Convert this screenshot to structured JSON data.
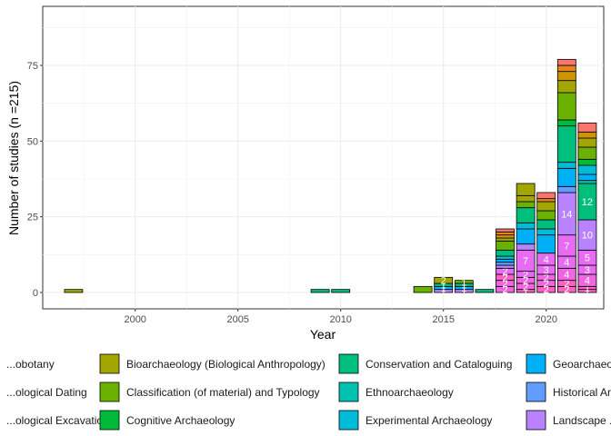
{
  "chart_data": {
    "type": "bar",
    "stacked": true,
    "xlabel": "Year",
    "ylabel": "Number of studies (n =215)",
    "xlim": [
      1995.5,
      2022.8
    ],
    "ylim": [
      0,
      75
    ],
    "x_ticks": [
      2000,
      2005,
      2010,
      2015,
      2020
    ],
    "y_ticks": [
      0,
      25,
      50,
      75
    ],
    "grid": true,
    "legend_position": "bottom",
    "legend_entries": [
      {
        "name": "...obotany",
        "color": "#F8766D"
      },
      {
        "name": "...ological Dating",
        "color": "#E7851E"
      },
      {
        "name": "...ological Excavation",
        "color": "#D09400"
      },
      {
        "name": "Bioarchaeology (Biological Anthropology)",
        "color": "#A3A500"
      },
      {
        "name": "Classification (of material) and Typology",
        "color": "#6BB100"
      },
      {
        "name": "Cognitive Archaeology",
        "color": "#00BA38"
      },
      {
        "name": "Conservation and Cataloguing",
        "color": "#00BF7D"
      },
      {
        "name": "Ethnoarchaeology",
        "color": "#00C0AF"
      },
      {
        "name": "Experimental Archaeology",
        "color": "#00BCD8"
      },
      {
        "name": "Geoarchaeo...",
        "color": "#00B0F6"
      },
      {
        "name": "Historical Ar...",
        "color": "#619CFF"
      },
      {
        "name": "Landscape ...",
        "color": "#B983FF"
      }
    ],
    "bars": [
      {
        "year": 1997,
        "segments": [
          {
            "value": 1,
            "color": "#A3A500"
          }
        ]
      },
      {
        "year": 2009,
        "segments": [
          {
            "value": 1,
            "color": "#00BF7D"
          }
        ]
      },
      {
        "year": 2010,
        "segments": [
          {
            "value": 1,
            "color": "#00BF7D"
          }
        ]
      },
      {
        "year": 2014,
        "segments": [
          {
            "value": 2,
            "color": "#6BB100"
          }
        ]
      },
      {
        "year": 2015,
        "segments": [
          {
            "value": 1,
            "color": "#B983FF",
            "label": "1"
          },
          {
            "value": 1,
            "color": "#00B0F6",
            "label": "1"
          },
          {
            "value": 1,
            "color": "#00BF7D",
            "label": "1"
          },
          {
            "value": 2,
            "color": "#A3A500",
            "label": "2"
          }
        ]
      },
      {
        "year": 2016,
        "segments": [
          {
            "value": 1,
            "color": "#B983FF",
            "label": "1"
          },
          {
            "value": 1,
            "color": "#00B0F6",
            "label": "1"
          },
          {
            "value": 1,
            "color": "#00BF7D",
            "label": "1"
          },
          {
            "value": 1,
            "color": "#6BB100",
            "label": "1"
          }
        ]
      },
      {
        "year": 2017,
        "segments": [
          {
            "value": 1,
            "color": "#00BF7D"
          }
        ]
      },
      {
        "year": 2018,
        "segments": [
          {
            "value": 2,
            "color": "#F066E0",
            "label": "2"
          },
          {
            "value": 2,
            "color": "#F066E0",
            "label": "2"
          },
          {
            "value": 2,
            "color": "#FF61C3",
            "label": "2"
          },
          {
            "value": 2,
            "color": "#E76BF3",
            "label": "2"
          },
          {
            "value": 1,
            "color": "#B983FF"
          },
          {
            "value": 1,
            "color": "#619CFF"
          },
          {
            "value": 1,
            "color": "#00B0F6"
          },
          {
            "value": 1,
            "color": "#00BCD8"
          },
          {
            "value": 2,
            "color": "#00BF7D"
          },
          {
            "value": 3,
            "color": "#6BB100"
          },
          {
            "value": 1,
            "color": "#A3A500"
          },
          {
            "value": 1,
            "color": "#D09400"
          },
          {
            "value": 1,
            "color": "#E7851E"
          },
          {
            "value": 1,
            "color": "#F8766D"
          }
        ]
      },
      {
        "year": 2019,
        "segments": [
          {
            "value": 1,
            "color": "#FF61C3",
            "label": "1"
          },
          {
            "value": 2,
            "color": "#F066E0",
            "label": "2"
          },
          {
            "value": 2,
            "color": "#F066E0",
            "label": "2"
          },
          {
            "value": 2,
            "color": "#E76BF3",
            "label": "2"
          },
          {
            "value": 7,
            "color": "#E76BF3",
            "label": "7"
          },
          {
            "value": 2,
            "color": "#B983FF"
          },
          {
            "value": 5,
            "color": "#00B0F6"
          },
          {
            "value": 2,
            "color": "#00BCD8"
          },
          {
            "value": 5,
            "color": "#00BF7D"
          },
          {
            "value": 2,
            "color": "#6BB100"
          },
          {
            "value": 2,
            "color": "#A3A500"
          },
          {
            "value": 4,
            "color": "#A3A500"
          }
        ]
      },
      {
        "year": 2020,
        "segments": [
          {
            "value": 2,
            "color": "#FF61C3",
            "label": "2"
          },
          {
            "value": 2,
            "color": "#F066E0",
            "label": "2"
          },
          {
            "value": 2,
            "color": "#F066E0",
            "label": "2"
          },
          {
            "value": 3,
            "color": "#E76BF3",
            "label": "3"
          },
          {
            "value": 4,
            "color": "#E76BF3",
            "label": "4"
          },
          {
            "value": 6,
            "color": "#00B0F6"
          },
          {
            "value": 2,
            "color": "#00BCD8"
          },
          {
            "value": 3,
            "color": "#00BF7D"
          },
          {
            "value": 3,
            "color": "#6BB100"
          },
          {
            "value": 3,
            "color": "#A3A500"
          },
          {
            "value": 1,
            "color": "#E7851E"
          },
          {
            "value": 2,
            "color": "#F8766D"
          }
        ]
      },
      {
        "year": 2021,
        "segments": [
          {
            "value": 2,
            "color": "#FF61C3",
            "label": "2"
          },
          {
            "value": 2,
            "color": "#FF61C3",
            "label": "2"
          },
          {
            "value": 4,
            "color": "#F066E0",
            "label": "4"
          },
          {
            "value": 4,
            "color": "#E76BF3",
            "label": "4"
          },
          {
            "value": 7,
            "color": "#E76BF3",
            "label": "7"
          },
          {
            "value": 14,
            "color": "#B983FF",
            "label": "14"
          },
          {
            "value": 2,
            "color": "#619CFF"
          },
          {
            "value": 6,
            "color": "#00B0F6"
          },
          {
            "value": 2,
            "color": "#00BCD8"
          },
          {
            "value": 12,
            "color": "#00BF7D"
          },
          {
            "value": 2,
            "color": "#00BA38"
          },
          {
            "value": 9,
            "color": "#6BB100"
          },
          {
            "value": 4,
            "color": "#A3A500"
          },
          {
            "value": 3,
            "color": "#D09400"
          },
          {
            "value": 2,
            "color": "#E7851E"
          },
          {
            "value": 2,
            "color": "#F8766D"
          }
        ]
      },
      {
        "year": 2022,
        "segments": [
          {
            "value": 1,
            "color": "#FF61C3",
            "label": "1"
          },
          {
            "value": 1,
            "color": "#FF61C3",
            "label": "1"
          },
          {
            "value": 4,
            "color": "#F066E0",
            "label": "4"
          },
          {
            "value": 3,
            "color": "#E76BF3",
            "label": "3"
          },
          {
            "value": 5,
            "color": "#E76BF3",
            "label": "5"
          },
          {
            "value": 10,
            "color": "#B983FF",
            "label": "10"
          },
          {
            "value": 12,
            "color": "#00BF7D",
            "label": "12"
          },
          {
            "value": 1,
            "color": "#00C0AF"
          },
          {
            "value": 2,
            "color": "#00B0F6"
          },
          {
            "value": 3,
            "color": "#00BCD8"
          },
          {
            "value": 2,
            "color": "#00BA38"
          },
          {
            "value": 4,
            "color": "#6BB100"
          },
          {
            "value": 3,
            "color": "#A3A500"
          },
          {
            "value": 2,
            "color": "#D09400"
          },
          {
            "value": 3,
            "color": "#F8766D"
          }
        ]
      }
    ]
  }
}
